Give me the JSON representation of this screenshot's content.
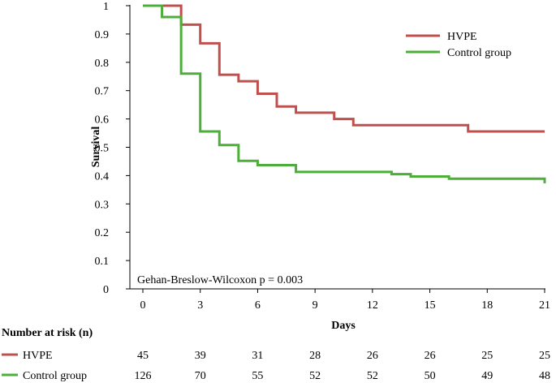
{
  "chart_data": {
    "type": "line",
    "step": true,
    "title": "",
    "xlabel": "Days",
    "ylabel": "Survival",
    "xlim": [
      0,
      21
    ],
    "ylim": [
      0,
      1
    ],
    "xticks": [
      0,
      3,
      6,
      9,
      12,
      15,
      18,
      21
    ],
    "yticks": [
      0,
      0.1,
      0.2,
      0.3,
      0.4,
      0.5,
      0.6,
      0.7,
      0.8,
      0.9,
      1
    ],
    "ytick_labels": [
      "0",
      "0.1",
      "0.2",
      "0.3",
      "0.4",
      "0.5",
      "0.6",
      "0.7",
      "0.8",
      "0.9",
      "1"
    ],
    "grid": false,
    "legend_position": "top-right",
    "annotation": "Gehan-Breslow-Wilcoxon p = 0.003",
    "series": [
      {
        "name": "HVPE",
        "color": "#c0504d",
        "points": [
          [
            0,
            1
          ],
          [
            2,
            0.933
          ],
          [
            3,
            0.867
          ],
          [
            4,
            0.756
          ],
          [
            5,
            0.733
          ],
          [
            6,
            0.689
          ],
          [
            7,
            0.644
          ],
          [
            8,
            0.622
          ],
          [
            10,
            0.6
          ],
          [
            11,
            0.578
          ],
          [
            17,
            0.556
          ],
          [
            21,
            0.556
          ]
        ]
      },
      {
        "name": "Control group",
        "color": "#4daf3a",
        "points": [
          [
            0,
            1
          ],
          [
            1,
            0.96
          ],
          [
            2,
            0.76
          ],
          [
            3,
            0.556
          ],
          [
            4,
            0.508
          ],
          [
            5,
            0.452
          ],
          [
            6,
            0.437
          ],
          [
            8,
            0.413
          ],
          [
            13,
            0.405
          ],
          [
            14,
            0.397
          ],
          [
            16,
            0.389
          ],
          [
            21,
            0.381
          ],
          [
            21,
            0.373
          ]
        ]
      }
    ],
    "risk_table": {
      "title": "Number at risk (n)",
      "columns": [
        0,
        3,
        6,
        9,
        12,
        15,
        18,
        21
      ],
      "rows": [
        {
          "label": "HVPE",
          "color": "#c0504d",
          "values": [
            "45",
            "39",
            "31",
            "28",
            "26",
            "26",
            "25",
            "25"
          ]
        },
        {
          "label": "Control group",
          "color": "#4daf3a",
          "values": [
            "126",
            "70",
            "55",
            "52",
            "52",
            "50",
            "49",
            "48"
          ]
        }
      ]
    }
  }
}
